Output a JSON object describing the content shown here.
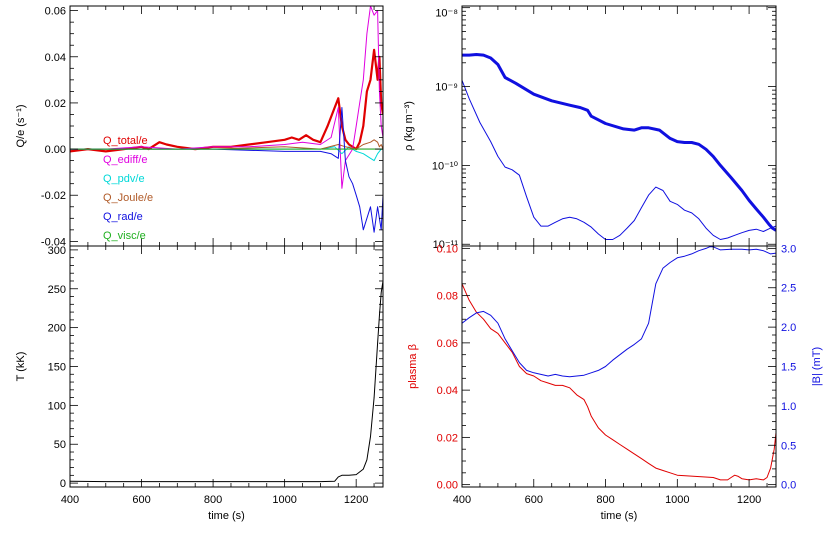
{
  "colors": {
    "red": "#e00000",
    "magenta": "#e000e0",
    "cyan": "#00d8d8",
    "brown": "#b05a28",
    "blue": "#1010e0",
    "green": "#20b020",
    "black": "#000000"
  },
  "chart_data": [
    {
      "id": "q_panel",
      "type": "line",
      "ylabel": "Q/e (s⁻¹)",
      "xlim": [
        400,
        1275
      ],
      "ylim": [
        -0.042,
        0.062
      ],
      "yticks": [
        -0.04,
        -0.02,
        0.0,
        0.02,
        0.04,
        0.06
      ],
      "ytick_labels": [
        "-0.04",
        "-0.02",
        "0.00",
        "0.02",
        "0.04",
        "0.06"
      ],
      "legend_position": "center-left",
      "series": [
        {
          "name": "Q_total/e",
          "color": "red",
          "width": 2.2,
          "x": [
            400,
            450,
            500,
            550,
            600,
            620,
            650,
            670,
            700,
            750,
            800,
            850,
            900,
            950,
            1000,
            1020,
            1040,
            1060,
            1080,
            1100,
            1120,
            1140,
            1150,
            1160,
            1170,
            1180,
            1200,
            1210,
            1220,
            1230,
            1240,
            1250,
            1260,
            1265,
            1270,
            1275
          ],
          "y": [
            -0.001,
            0.0,
            -0.001,
            0.0,
            0.001,
            0.0,
            0.003,
            0.002,
            0.001,
            0.0,
            0.001,
            0.001,
            0.002,
            0.003,
            0.004,
            0.005,
            0.004,
            0.006,
            0.004,
            0.003,
            0.01,
            0.018,
            0.022,
            0.01,
            0.004,
            0.002,
            0.0,
            0.003,
            0.01,
            0.025,
            0.03,
            0.043,
            0.03,
            0.04,
            0.02,
            0.015
          ]
        },
        {
          "name": "Q_ediff/e",
          "color": "magenta",
          "width": 1,
          "x": [
            400,
            500,
            600,
            700,
            800,
            900,
            1000,
            1050,
            1100,
            1130,
            1150,
            1160,
            1170,
            1190,
            1200,
            1210,
            1220,
            1230,
            1240,
            1250,
            1260,
            1265,
            1270,
            1275
          ],
          "y": [
            0.0,
            0.0,
            0.001,
            0.0,
            0.001,
            0.001,
            0.002,
            0.003,
            0.002,
            0.005,
            0.018,
            -0.017,
            -0.005,
            0.0,
            0.01,
            0.02,
            0.03,
            0.05,
            0.062,
            0.058,
            0.06,
            0.025,
            0.01,
            0.005
          ]
        },
        {
          "name": "Q_pdv/e",
          "color": "cyan",
          "width": 1,
          "x": [
            400,
            600,
            800,
            1000,
            1100,
            1140,
            1160,
            1180,
            1200,
            1220,
            1240,
            1250,
            1260,
            1270,
            1275
          ],
          "y": [
            0.0,
            0.0,
            0.0,
            0.0,
            0.0,
            0.001,
            -0.002,
            0.001,
            -0.001,
            -0.002,
            -0.004,
            -0.005,
            -0.002,
            0.0,
            0.0
          ]
        },
        {
          "name": "Q_Joule/e",
          "color": "brown",
          "width": 1,
          "x": [
            400,
            600,
            800,
            1000,
            1100,
            1150,
            1170,
            1200,
            1220,
            1240,
            1250,
            1260,
            1265,
            1270,
            1275
          ],
          "y": [
            0.0,
            0.0,
            0.0,
            0.001,
            0.0,
            0.002,
            0.001,
            0.0,
            0.002,
            0.003,
            0.004,
            0.003,
            0.001,
            0.002,
            0.0
          ]
        },
        {
          "name": "Q_rad/e",
          "color": "blue",
          "width": 1,
          "x": [
            400,
            600,
            800,
            1000,
            1100,
            1130,
            1150,
            1160,
            1170,
            1180,
            1190,
            1200,
            1210,
            1220,
            1230,
            1240,
            1250,
            1260,
            1270,
            1275
          ],
          "y": [
            0.0,
            0.0,
            0.0,
            -0.001,
            -0.001,
            -0.002,
            -0.004,
            0.018,
            -0.005,
            -0.012,
            -0.015,
            -0.02,
            -0.025,
            -0.035,
            -0.03,
            -0.025,
            -0.036,
            -0.025,
            -0.035,
            -0.02
          ]
        },
        {
          "name": "Q_visc/e",
          "color": "green",
          "width": 1,
          "x": [
            400,
            600,
            800,
            1000,
            1200,
            1275
          ],
          "y": [
            0.0,
            0.0,
            0.0,
            0.0,
            0.0,
            0.0
          ]
        }
      ]
    },
    {
      "id": "rho_panel",
      "type": "line",
      "ylabel": "ρ (kg m⁻³)",
      "yscale": "log",
      "xlim": [
        400,
        1275
      ],
      "ylim": [
        9.5e-12,
        1.05e-08
      ],
      "yticks": [
        1e-11,
        1e-10,
        1e-09,
        1e-08
      ],
      "ytick_labels": [
        "10⁻¹¹",
        "10⁻¹⁰",
        "10⁻⁹",
        "10⁻⁸"
      ],
      "series": [
        {
          "color": "blue",
          "width": 3,
          "x": [
            400,
            420,
            440,
            460,
            480,
            500,
            520,
            550,
            600,
            650,
            700,
            730,
            750,
            760,
            800,
            850,
            880,
            900,
            920,
            950,
            980,
            1000,
            1020,
            1040,
            1060,
            1080,
            1100,
            1120,
            1150,
            1180,
            1200,
            1220,
            1240,
            1255,
            1265,
            1275
          ],
          "y": [
            2.5e-09,
            2.5e-09,
            2.55e-09,
            2.5e-09,
            2.3e-09,
            1.9e-09,
            1.3e-09,
            1.1e-09,
            8e-10,
            6.6e-10,
            5.8e-10,
            5.4e-10,
            5e-10,
            4.2e-10,
            3.4e-10,
            2.9e-10,
            2.8e-10,
            3e-10,
            3e-10,
            2.8e-10,
            2.2e-10,
            2e-10,
            1.95e-10,
            1.95e-10,
            1.85e-10,
            1.6e-10,
            1.3e-10,
            1e-10,
            7e-11,
            4.8e-11,
            3.6e-11,
            2.8e-11,
            2.2e-11,
            1.8e-11,
            1.6e-11,
            1.5e-11
          ]
        },
        {
          "color": "blue",
          "width": 1,
          "x": [
            400,
            420,
            450,
            480,
            500,
            520,
            540,
            560,
            580,
            600,
            620,
            640,
            660,
            680,
            700,
            720,
            740,
            760,
            780,
            800,
            820,
            840,
            860,
            880,
            900,
            920,
            940,
            960,
            980,
            1000,
            1020,
            1040,
            1060,
            1080,
            1100,
            1120,
            1140,
            1160,
            1180,
            1200,
            1220,
            1240,
            1260,
            1275
          ],
          "y": [
            1.2e-09,
            7e-10,
            3.5e-10,
            2e-10,
            1.3e-10,
            9.5e-11,
            8.8e-11,
            7.5e-11,
            4e-11,
            2.2e-11,
            1.7e-11,
            1.7e-11,
            1.9e-11,
            2.1e-11,
            2.2e-11,
            2.1e-11,
            1.9e-11,
            1.65e-11,
            1.35e-11,
            1.15e-11,
            1.15e-11,
            1.3e-11,
            1.6e-11,
            2e-11,
            2.9e-11,
            4.2e-11,
            5.3e-11,
            4.8e-11,
            3.5e-11,
            3.2e-11,
            2.7e-11,
            2.5e-11,
            2.1e-11,
            1.6e-11,
            1.3e-11,
            1.15e-11,
            1.2e-11,
            1.3e-11,
            1.4e-11,
            1.5e-11,
            1.55e-11,
            1.45e-11,
            1.6e-11,
            1.7e-11
          ]
        }
      ]
    },
    {
      "id": "t_panel",
      "type": "line",
      "xlabel": "time (s)",
      "ylabel": "T (kK)",
      "xlim": [
        400,
        1275
      ],
      "xticks": [
        400,
        600,
        800,
        1000,
        1200
      ],
      "ylim": [
        -5,
        305
      ],
      "yticks": [
        0,
        50,
        100,
        150,
        200,
        250,
        300
      ],
      "series": [
        {
          "color": "black",
          "width": 1,
          "x": [
            400,
            500,
            600,
            800,
            1000,
            1100,
            1140,
            1150,
            1160,
            1180,
            1200,
            1220,
            1230,
            1240,
            1250,
            1260,
            1265,
            1270,
            1275
          ],
          "y": [
            2.5,
            2,
            2,
            2,
            2,
            2,
            2.5,
            8,
            10,
            10,
            11,
            18,
            30,
            60,
            110,
            180,
            215,
            245,
            260
          ]
        }
      ]
    },
    {
      "id": "beta_b_panel",
      "type": "line",
      "xlabel": "time (s)",
      "ylabel": "plasma β",
      "ylabel_right": "|B| (mT)",
      "xlim": [
        400,
        1275
      ],
      "xticks": [
        400,
        600,
        800,
        1000,
        1200
      ],
      "ylim": [
        -0.001,
        0.101
      ],
      "yticks": [
        0.0,
        0.02,
        0.04,
        0.06,
        0.08,
        0.1
      ],
      "ytick_labels": [
        "0.00",
        "0.02",
        "0.04",
        "0.06",
        "0.08",
        "0.10"
      ],
      "ylim_right": [
        -0.03,
        3.03
      ],
      "yticks_right": [
        0.0,
        0.5,
        1.0,
        1.5,
        2.0,
        2.5,
        3.0
      ],
      "ytick_labels_right": [
        "0.0",
        "0.5",
        "1.0",
        "1.5",
        "2.0",
        "2.5",
        "3.0"
      ],
      "series": [
        {
          "color": "red",
          "width": 1,
          "axis": "left",
          "x": [
            400,
            420,
            440,
            460,
            480,
            500,
            520,
            540,
            560,
            580,
            600,
            620,
            640,
            660,
            680,
            700,
            720,
            740,
            750,
            760,
            780,
            800,
            820,
            840,
            860,
            880,
            900,
            920,
            940,
            960,
            980,
            1000,
            1050,
            1100,
            1120,
            1140,
            1150,
            1160,
            1170,
            1180,
            1200,
            1220,
            1240,
            1250,
            1260,
            1270,
            1275
          ],
          "y": [
            0.085,
            0.078,
            0.073,
            0.07,
            0.066,
            0.064,
            0.06,
            0.056,
            0.05,
            0.047,
            0.046,
            0.044,
            0.043,
            0.042,
            0.042,
            0.041,
            0.038,
            0.036,
            0.033,
            0.029,
            0.024,
            0.021,
            0.019,
            0.017,
            0.015,
            0.013,
            0.011,
            0.009,
            0.007,
            0.006,
            0.005,
            0.004,
            0.0035,
            0.003,
            0.002,
            0.002,
            0.003,
            0.004,
            0.0035,
            0.0025,
            0.002,
            0.0025,
            0.002,
            0.003,
            0.007,
            0.015,
            0.022
          ]
        },
        {
          "color": "blue",
          "width": 1,
          "axis": "right",
          "x": [
            400,
            420,
            440,
            460,
            480,
            500,
            520,
            540,
            560,
            580,
            600,
            620,
            640,
            660,
            680,
            700,
            720,
            740,
            760,
            780,
            800,
            820,
            840,
            860,
            880,
            900,
            920,
            930,
            940,
            960,
            980,
            1000,
            1020,
            1040,
            1060,
            1080,
            1090,
            1100,
            1120,
            1150,
            1180,
            1200,
            1220,
            1240,
            1260,
            1275
          ],
          "y": [
            2.05,
            2.12,
            2.18,
            2.2,
            2.15,
            2.05,
            1.85,
            1.7,
            1.55,
            1.45,
            1.42,
            1.4,
            1.38,
            1.4,
            1.38,
            1.37,
            1.38,
            1.39,
            1.42,
            1.45,
            1.5,
            1.58,
            1.65,
            1.72,
            1.78,
            1.85,
            2.05,
            2.3,
            2.55,
            2.75,
            2.82,
            2.88,
            2.9,
            2.93,
            2.97,
            3.0,
            3.02,
            3.02,
            2.98,
            2.99,
            2.99,
            2.98,
            2.99,
            2.97,
            2.93,
            2.94
          ]
        }
      ]
    }
  ]
}
